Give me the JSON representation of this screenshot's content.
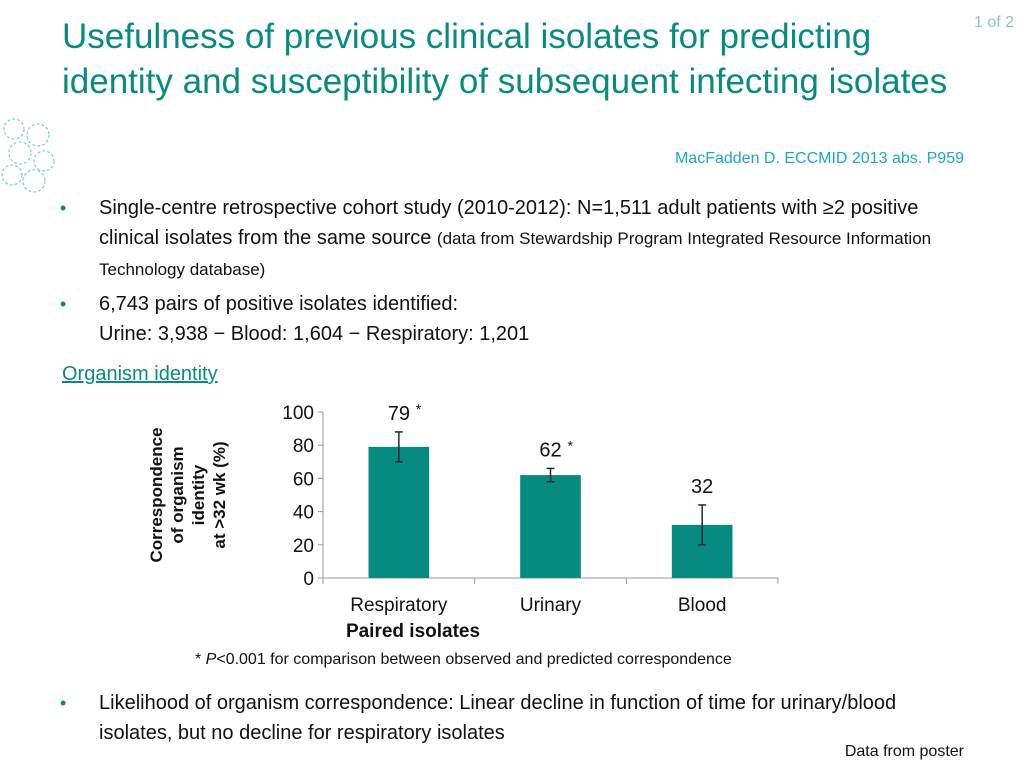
{
  "slide": {
    "title": "Usefulness of previous clinical isolates for predicting identity and susceptibility of subsequent infecting isolates",
    "page_indicator": "1 of 2",
    "citation": "MacFadden D. ECCMID 2013 abs. P959",
    "accent_color": "#078b80",
    "citation_color": "#1ba7c9"
  },
  "bullets": [
    {
      "icon": "bullet-dot",
      "text": "Single-centre retrospective cohort study (2010-2012): N=1,511 adult patients with ≥2 positive clinical isolates from the same source ",
      "small_text": "(data from Stewardship Program Integrated Resource Information Technology database)"
    },
    {
      "icon": "bullet-dot",
      "line1": "6,743 pairs of positive isolates identified:",
      "line2": "Urine: 3,938 − Blood: 1,604 − Respiratory: 1,201"
    }
  ],
  "section": {
    "label": "Organism identity"
  },
  "chart_data": {
    "type": "bar",
    "title": "",
    "xlabel": "Paired isolates",
    "ylabel": "Correspondence of organism identity at >32 wk (%)",
    "ylabel_lines": [
      "Correspondence",
      "of organism",
      "identity",
      "at >32 wk (%)"
    ],
    "categories": [
      "Respiratory",
      "Urinary",
      "Blood"
    ],
    "values": [
      79,
      62,
      32
    ],
    "data_labels": [
      "79",
      "62",
      "32"
    ],
    "significance": [
      "*",
      "*",
      ""
    ],
    "error_bars": [
      {
        "low": 70,
        "high": 88
      },
      {
        "low": 58,
        "high": 66
      },
      {
        "low": 20,
        "high": 44
      }
    ],
    "ylim": [
      0,
      100
    ],
    "yticks": [
      0,
      20,
      40,
      60,
      80,
      100
    ],
    "grid": false,
    "legend": "none",
    "bar_color": "#078b80"
  },
  "footnote": {
    "star": "* ",
    "p": "P",
    "text": "<0.001 for comparison between observed and predicted correspondence"
  },
  "bottom_bullet": {
    "icon": "bullet-dot",
    "text": "Likelihood of organism correspondence: Linear decline in function of time for urinary/blood isolates, but no decline for respiratory isolates"
  },
  "source_note": "Data from poster"
}
